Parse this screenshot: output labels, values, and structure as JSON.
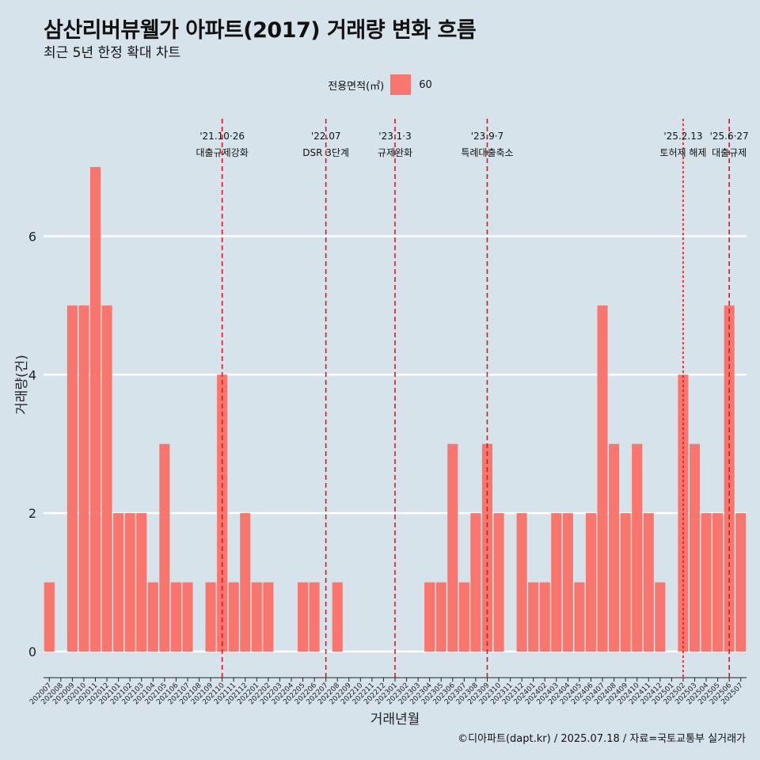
{
  "title": "삼산리버뷰웰가 아파트(2017) 거래량 변화 흐름",
  "subtitle": "최근 5년 한정 확대 차트",
  "legend": {
    "title": "전용면적(㎡)",
    "item": "60",
    "color": "#f8766d"
  },
  "caption": "©디아파트(dapt.kr) / 2025.07.18 / 자료=국토교통부 실거래가",
  "chart_data": {
    "type": "bar",
    "xlabel": "거래년월",
    "ylabel": "거래량(건)",
    "ylim": [
      0,
      7.5
    ],
    "yticks": [
      0,
      2,
      4,
      6
    ],
    "grid": true,
    "legend_position": "top",
    "bar_color": "#f8766d",
    "categories": [
      "202007",
      "202008",
      "202009",
      "202010",
      "202011",
      "202012",
      "202101",
      "202102",
      "202103",
      "202104",
      "202105",
      "202106",
      "202107",
      "202108",
      "202109",
      "202110",
      "202111",
      "202112",
      "202201",
      "202202",
      "202203",
      "202204",
      "202205",
      "202206",
      "202207",
      "202208",
      "202209",
      "202210",
      "202211",
      "202212",
      "202301",
      "202302",
      "202303",
      "202304",
      "202305",
      "202306",
      "202307",
      "202308",
      "202309",
      "202310",
      "202311",
      "202312",
      "202401",
      "202402",
      "202403",
      "202404",
      "202405",
      "202406",
      "202407",
      "202408",
      "202409",
      "202410",
      "202411",
      "202412",
      "202501",
      "202502",
      "202503",
      "202504",
      "202505",
      "202506",
      "202507"
    ],
    "series": [
      {
        "values": [
          1,
          0,
          5,
          5,
          7,
          5,
          2,
          2,
          2,
          1,
          3,
          1,
          1,
          0,
          1,
          4,
          1,
          2,
          1,
          1,
          0,
          0,
          1,
          1,
          0,
          1,
          0,
          0,
          0,
          0,
          0,
          0,
          0,
          1,
          1,
          3,
          1,
          2,
          3,
          2,
          0,
          2,
          1,
          1,
          2,
          2,
          1,
          2,
          5,
          3,
          2,
          3,
          2,
          1,
          0,
          4,
          3,
          2,
          2,
          5,
          2
        ]
      }
    ],
    "annotations": [
      {
        "category": "202110",
        "date": "'21.10·26",
        "label": "대출규제강화",
        "style": "dashed"
      },
      {
        "category": "202207",
        "date": "'22.07",
        "label": "DSR 3단계",
        "style": "dashed"
      },
      {
        "category": "202301",
        "date": "'23.1·3",
        "label": "규제완화",
        "style": "dashed"
      },
      {
        "category": "202309",
        "date": "'23.9·7",
        "label": "특례대출축소",
        "style": "dashed"
      },
      {
        "category": "202502",
        "date": "'25.2.13",
        "label": "토허제 해제",
        "style": "dotted"
      },
      {
        "category": "202506",
        "date": "'25.6·27",
        "label": "대출규제",
        "style": "dashed"
      }
    ]
  }
}
